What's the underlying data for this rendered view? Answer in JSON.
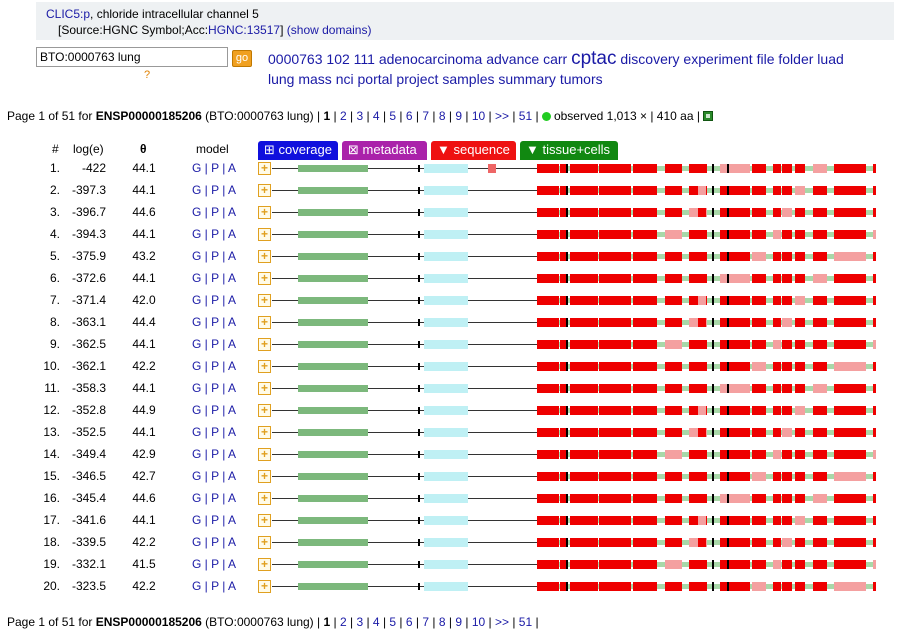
{
  "header": {
    "gene_link": "CLIC5:p",
    "gene_desc": ", chloride intracellular channel 5",
    "source_prefix": "[Source:HGNC Symbol;Acc:",
    "hgnc_link": "HGNC:13517",
    "source_suffix": "]",
    "show_domains": "(show domains)"
  },
  "search": {
    "value": "BTO:0000763 lung",
    "go_label": "go",
    "help": "?"
  },
  "tags": [
    "0000763",
    "102",
    "111",
    "adenocarcinoma",
    "advance",
    "carr",
    "cptac",
    "discovery",
    "experiment",
    "file",
    "folder",
    "luad",
    "lung",
    "mass",
    "nci",
    "portal",
    "project",
    "samples",
    "summary",
    "tumors"
  ],
  "big_tag": "cptac",
  "pager": {
    "prefix": "Page 1 of 51 for ",
    "protein": "ENSP00000185206",
    "context": " (BTO:0000763 lung) | ",
    "current": "1",
    "pages": [
      "2",
      "3",
      "4",
      "5",
      "6",
      "7",
      "8",
      "9",
      "10",
      ">>",
      "51"
    ],
    "observed": "observed 1,013 × | 410 aa |"
  },
  "columns": {
    "idx": "#",
    "log": "log(e)",
    "theta": "θ",
    "model": "model"
  },
  "tabs": {
    "coverage": "⊞ coverage",
    "metadata": "⊠ metadata",
    "sequence": "▼ sequence",
    "tissue": "▼ tissue+cells"
  },
  "model_links": "G | P | A",
  "rows": [
    {
      "idx": "1.",
      "log": "-422",
      "theta": "44.1"
    },
    {
      "idx": "2.",
      "log": "-397.3",
      "theta": "44.1"
    },
    {
      "idx": "3.",
      "log": "-396.7",
      "theta": "44.6"
    },
    {
      "idx": "4.",
      "log": "-394.3",
      "theta": "44.1"
    },
    {
      "idx": "5.",
      "log": "-375.9",
      "theta": "43.2"
    },
    {
      "idx": "6.",
      "log": "-372.6",
      "theta": "44.1"
    },
    {
      "idx": "7.",
      "log": "-371.4",
      "theta": "42.0"
    },
    {
      "idx": "8.",
      "log": "-363.1",
      "theta": "44.4"
    },
    {
      "idx": "9.",
      "log": "-362.5",
      "theta": "44.1"
    },
    {
      "idx": "10.",
      "log": "-362.1",
      "theta": "42.2"
    },
    {
      "idx": "11.",
      "log": "-358.3",
      "theta": "44.1"
    },
    {
      "idx": "12.",
      "log": "-352.8",
      "theta": "44.9"
    },
    {
      "idx": "13.",
      "log": "-352.5",
      "theta": "44.1"
    },
    {
      "idx": "14.",
      "log": "-349.4",
      "theta": "42.9"
    },
    {
      "idx": "15.",
      "log": "-346.5",
      "theta": "42.7"
    },
    {
      "idx": "16.",
      "log": "-345.4",
      "theta": "44.6"
    },
    {
      "idx": "17.",
      "log": "-341.6",
      "theta": "44.1"
    },
    {
      "idx": "18.",
      "log": "-339.5",
      "theta": "42.2"
    },
    {
      "idx": "19.",
      "log": "-332.1",
      "theta": "41.5"
    },
    {
      "idx": "20.",
      "log": "-323.5",
      "theta": "42.2"
    }
  ],
  "colors": {
    "link": "#1a1aa6",
    "domain_green": "#7cb87c",
    "domain_cyan": "#bff0f4",
    "peptide_red": "#ee0000",
    "peptide_pale": "#f4a0a0",
    "observed_dot": "#22cc22"
  }
}
